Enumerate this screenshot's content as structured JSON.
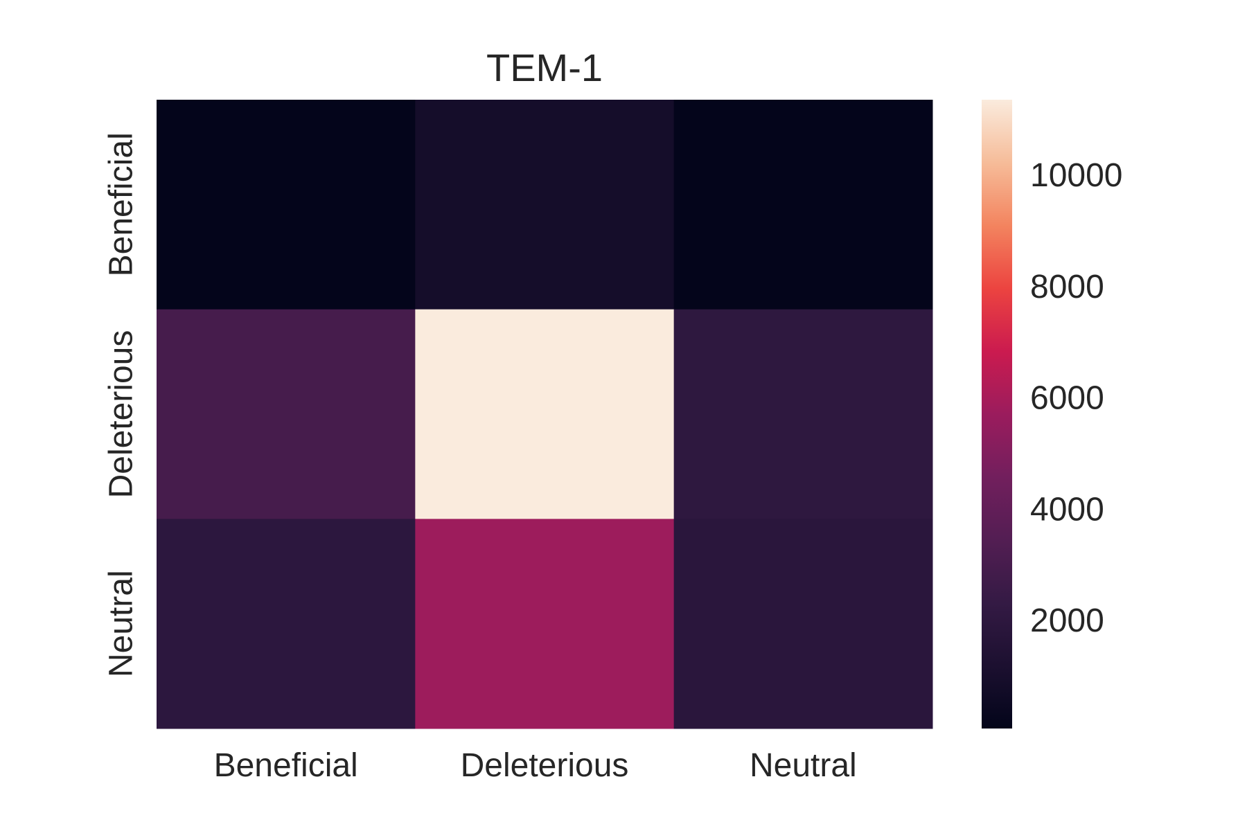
{
  "chart_data": {
    "type": "heatmap",
    "title": "TEM-1",
    "xlabel": "",
    "ylabel": "",
    "x_categories": [
      "Beneficial",
      "Deleterious",
      "Neutral"
    ],
    "y_categories": [
      "Beneficial",
      "Deleterious",
      "Neutral"
    ],
    "values": [
      [
        150,
        900,
        150
      ],
      [
        3000,
        11400,
        2100
      ],
      [
        2000,
        5800,
        1900
      ]
    ],
    "colorbar": {
      "range": [
        100,
        11400
      ],
      "ticks": [
        2000,
        4000,
        6000,
        8000,
        10000
      ],
      "tick_labels": [
        "2000",
        "4000",
        "6000",
        "8000",
        "10000"
      ]
    },
    "colormap": "rocket",
    "grid": false
  }
}
